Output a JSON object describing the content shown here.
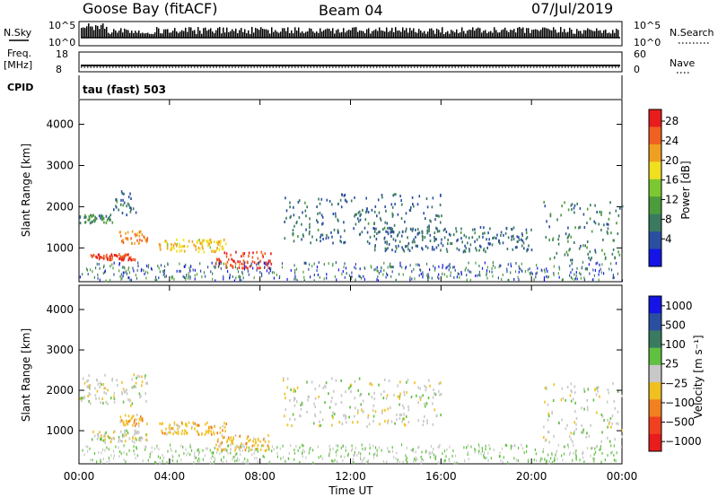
{
  "header": {
    "station": "Goose Bay (fitACF)",
    "beam": "Beam 04",
    "date": "07/Jul/2019"
  },
  "strip_nsky": {
    "left_label": "N.Sky",
    "left_top": "10^5",
    "left_bottom": "10^0",
    "right_top": "10^5",
    "right_bottom": "10^0",
    "right_label": "N.Search"
  },
  "strip_freq": {
    "left_label_1": "Freq.",
    "left_label_2": "[MHz]",
    "left_top": "18",
    "left_bottom": "8",
    "right_top": "60",
    "right_bottom": "0",
    "right_label": "Nave"
  },
  "strip_cpid": {
    "left_label": "CPID",
    "mode": "tau (fast) 503"
  },
  "colors": {
    "power": [
      "#1414e6",
      "#2a4fa0",
      "#3a7a60",
      "#4c9c3c",
      "#7cc832",
      "#f0e020",
      "#f0a020",
      "#f06020",
      "#e81c1c"
    ],
    "velocity": [
      "#1414e6",
      "#2a4fa0",
      "#3a7a60",
      "#60c040",
      "#c8c8c8",
      "#f0c020",
      "#f08020",
      "#f04020",
      "#e81c1c"
    ]
  },
  "chart_data": [
    {
      "type": "heatmap",
      "name": "power",
      "ylabel": "Slant Range [km]",
      "xlim": [
        "00:00",
        "24:00"
      ],
      "ylim": [
        180,
        4600
      ],
      "yticks": [
        1000,
        2000,
        3000,
        4000
      ],
      "colorbar": {
        "label": "Power [dB]",
        "ticks": [
          "4",
          "8",
          "12",
          "16",
          "20",
          "24",
          "28"
        ],
        "range": [
          0,
          30
        ]
      },
      "features": [
        {
          "start": "00:00",
          "end": "01:30",
          "range_km": [
            1600,
            1800
          ],
          "value": 8
        },
        {
          "start": "01:30",
          "end": "02:30",
          "range_km": [
            1800,
            2400
          ],
          "value": 6
        },
        {
          "start": "00:30",
          "end": "02:30",
          "range_km": [
            700,
            850
          ],
          "value": 28
        },
        {
          "start": "01:45",
          "end": "03:00",
          "range_km": [
            1100,
            1400
          ],
          "value": 24
        },
        {
          "start": "03:30",
          "end": "06:30",
          "range_km": [
            900,
            1200
          ],
          "value": 20
        },
        {
          "start": "06:00",
          "end": "08:30",
          "range_km": [
            500,
            900
          ],
          "value": 28
        },
        {
          "start": "09:00",
          "end": "16:00",
          "range_km": [
            1100,
            2300
          ],
          "value": 6
        },
        {
          "start": "13:00",
          "end": "20:00",
          "range_km": [
            900,
            1500
          ],
          "value": 6
        },
        {
          "start": "20:30",
          "end": "24:00",
          "range_km": [
            700,
            2200
          ],
          "value": 8
        }
      ]
    },
    {
      "type": "heatmap",
      "name": "velocity",
      "xlabel": "Time UT",
      "ylabel": "Slant Range [km]",
      "xlim": [
        "00:00",
        "24:00"
      ],
      "ylim": [
        180,
        4600
      ],
      "xticks": [
        "00:00",
        "04:00",
        "08:00",
        "12:00",
        "16:00",
        "20:00",
        "00:00"
      ],
      "yticks": [
        1000,
        2000,
        3000,
        4000
      ],
      "colorbar": {
        "label": "Velocity [m s⁻¹]",
        "ticks": [
          "1000",
          "500",
          "100",
          "25",
          "−25",
          "−100",
          "−500",
          "−1000"
        ]
      },
      "features": [
        {
          "start": "00:00",
          "end": "03:00",
          "range_km": [
            1600,
            2400
          ],
          "value": 0
        },
        {
          "start": "00:30",
          "end": "03:00",
          "range_km": [
            700,
            1000
          ],
          "value": 0
        },
        {
          "start": "01:45",
          "end": "03:00",
          "range_km": [
            1100,
            1400
          ],
          "value": -100
        },
        {
          "start": "03:30",
          "end": "06:30",
          "range_km": [
            900,
            1200
          ],
          "value": -100
        },
        {
          "start": "06:00",
          "end": "08:30",
          "range_km": [
            500,
            900
          ],
          "value": -50
        },
        {
          "start": "09:00",
          "end": "16:00",
          "range_km": [
            1100,
            2300
          ],
          "value": 0
        },
        {
          "start": "20:30",
          "end": "24:00",
          "range_km": [
            700,
            2200
          ],
          "value": 0
        }
      ]
    }
  ]
}
